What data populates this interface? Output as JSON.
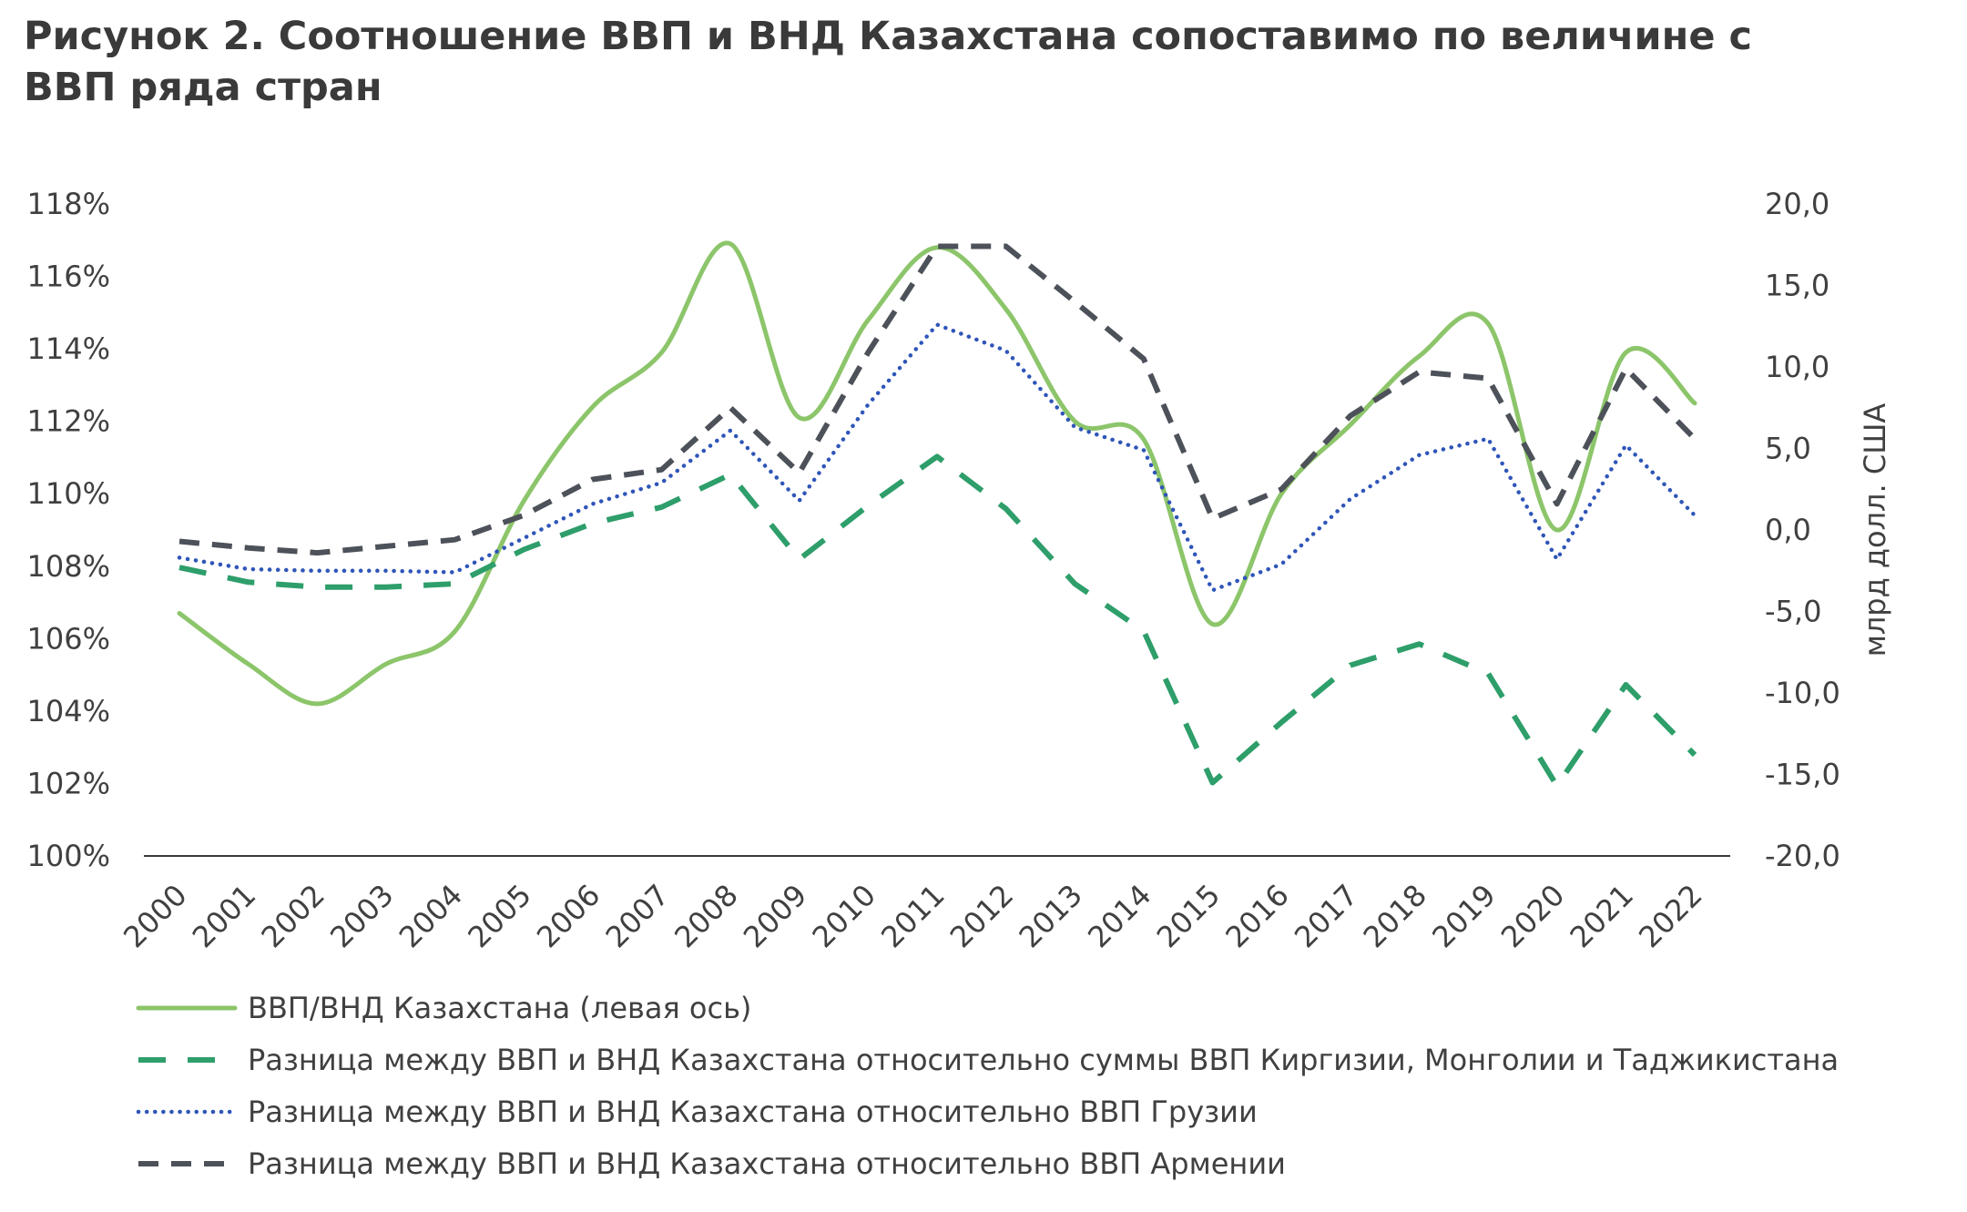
{
  "chart_data": {
    "type": "line",
    "title": "Рисунок 2. Соотношение ВВП и ВНД Казахстана сопоставимо по величине с ВВП ряда стран",
    "xlabel": "",
    "ylabel_left": "",
    "ylabel_right": "млрд долл. США",
    "categories": [
      "2000",
      "2001",
      "2002",
      "2003",
      "2004",
      "2005",
      "2006",
      "2007",
      "2008",
      "2009",
      "2010",
      "2011",
      "2012",
      "2013",
      "2014",
      "2015",
      "2016",
      "2017",
      "2018",
      "2019",
      "2020",
      "2021",
      "2022"
    ],
    "y_left": {
      "ylim": [
        100,
        118
      ],
      "ticks": [
        "100%",
        "102%",
        "104%",
        "106%",
        "108%",
        "110%",
        "112%",
        "114%",
        "116%",
        "118%"
      ]
    },
    "y_right": {
      "ylim": [
        -20,
        20
      ],
      "ticks": [
        "-20,0",
        "-15,0",
        "-10,0",
        "-5,0",
        "0,0",
        "5,0",
        "10,0",
        "15,0",
        "20,0"
      ]
    },
    "grid": false,
    "legend_position": "bottom",
    "series": [
      {
        "name": "ВВП/ВНД Казахстана (левая ось)",
        "axis": "left",
        "color": "#8cc56a",
        "style": "solid",
        "values": [
          106.7,
          105.3,
          104.2,
          105.3,
          106.2,
          109.8,
          112.4,
          113.9,
          116.9,
          112.1,
          114.8,
          116.8,
          115.1,
          112.0,
          111.5,
          106.4,
          110.0,
          111.9,
          113.8,
          114.7,
          109.0,
          113.9,
          112.5
        ]
      },
      {
        "name": "Разница между ВВП и ВНД Казахстана относительно суммы ВВП Киргизии, Монголии и Таджикистана",
        "axis": "right",
        "color": "#2e9e6a",
        "style": "dash",
        "values": [
          -2.3,
          -3.2,
          -3.5,
          -3.5,
          -3.3,
          -1.2,
          0.4,
          1.4,
          3.4,
          -1.8,
          1.5,
          4.5,
          1.3,
          -3.3,
          -6.2,
          -15.5,
          -11.8,
          -8.3,
          -7.0,
          -8.8,
          -15.7,
          -9.5,
          -13.8
        ]
      },
      {
        "name": "Разница между ВВП и ВНД Казахстана относительно ВВП Грузии",
        "axis": "right",
        "color": "#2f55b8",
        "style": "dot",
        "values": [
          -1.7,
          -2.4,
          -2.5,
          -2.5,
          -2.6,
          -0.5,
          1.6,
          2.9,
          6.1,
          1.8,
          7.7,
          12.6,
          11.0,
          6.3,
          4.9,
          -3.7,
          -2.1,
          1.9,
          4.6,
          5.6,
          -1.8,
          5.2,
          0.9
        ]
      },
      {
        "name": "Разница между ВВП и ВНД Казахстана относительно ВВП Армении",
        "axis": "right",
        "color": "#4d5159",
        "style": "longdash",
        "values": [
          -0.7,
          -1.1,
          -1.4,
          -1.0,
          -0.6,
          0.9,
          3.1,
          3.7,
          7.5,
          3.5,
          10.9,
          17.4,
          17.4,
          14.0,
          10.5,
          0.7,
          2.5,
          7.0,
          9.7,
          9.3,
          1.6,
          9.9,
          5.6
        ]
      }
    ]
  }
}
